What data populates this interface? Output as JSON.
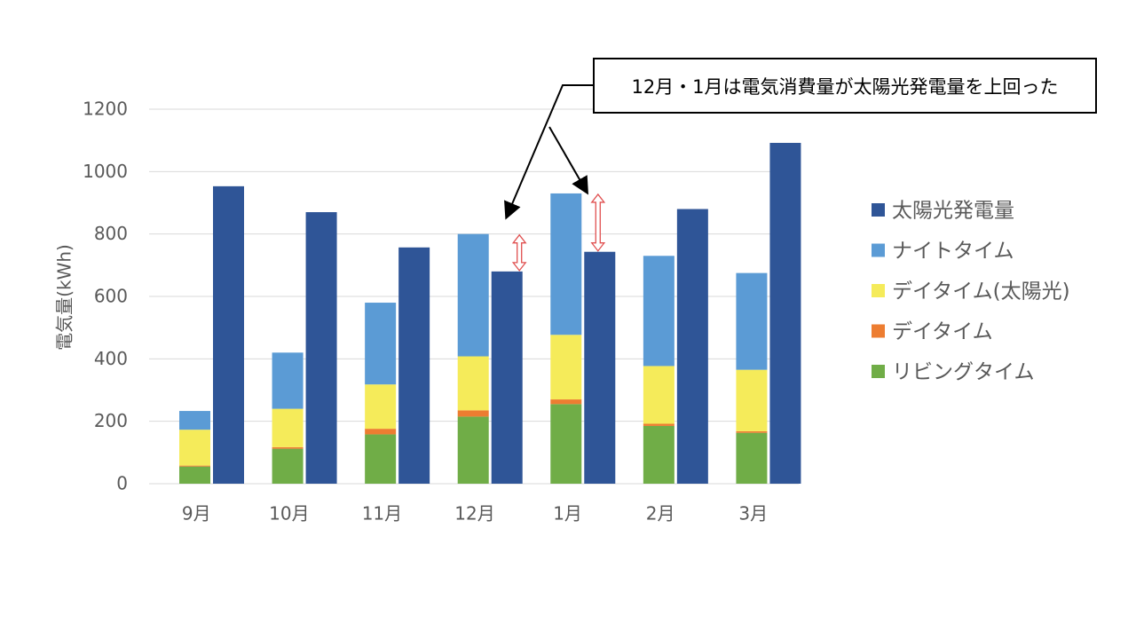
{
  "colors": {
    "solar": "#2F5597",
    "night": "#5B9BD5",
    "day_solar": "#F5EB5A",
    "day": "#ED7D31",
    "living": "#70AD47",
    "grid": "#D9D9D9",
    "axis_text": "#595959",
    "arrow": "#E05050"
  },
  "annotation": "12月・1月は電気消費量が太陽光発電量を上回った",
  "chart_data": {
    "type": "bar",
    "ylabel": "電気量(kWh)",
    "xlabel": "",
    "ylim": [
      0,
      1200
    ],
    "yticks": [
      0,
      200,
      400,
      600,
      800,
      1000,
      1200
    ],
    "grid": true,
    "legend_position": "right",
    "categories": [
      "9月",
      "10月",
      "11月",
      "12月",
      "1月",
      "2月",
      "3月"
    ],
    "stacked_series": [
      {
        "name": "リビングタイム",
        "color_key": "living",
        "values": [
          55,
          112,
          158,
          215,
          255,
          185,
          163
        ]
      },
      {
        "name": "デイタイム",
        "color_key": "day",
        "values": [
          3,
          5,
          18,
          20,
          15,
          7,
          5
        ]
      },
      {
        "name": "デイタイム(太陽光)",
        "color_key": "day_solar",
        "values": [
          115,
          123,
          142,
          173,
          207,
          185,
          197
        ]
      },
      {
        "name": "ナイトタイム",
        "color_key": "night",
        "values": [
          60,
          180,
          262,
          392,
          453,
          353,
          310
        ]
      }
    ],
    "solar_series": {
      "name": "太陽光発電量",
      "color_key": "solar",
      "values": [
        953,
        870,
        757,
        680,
        743,
        880,
        1092
      ]
    },
    "legend_order": [
      "太陽光発電量",
      "ナイトタイム",
      "デイタイム(太陽光)",
      "デイタイム",
      "リビングタイム"
    ]
  }
}
